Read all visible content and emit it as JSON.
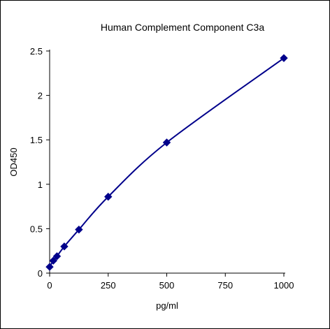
{
  "chart_data": {
    "type": "scatter",
    "title": "Human Complement Component C3a",
    "xlabel": "pg/ml",
    "ylabel": "OD450",
    "xlim": [
      0,
      1000
    ],
    "ylim": [
      0,
      2.5
    ],
    "x_ticks": [
      0,
      250,
      500,
      750,
      1000
    ],
    "y_ticks": [
      0,
      0.5,
      1,
      1.5,
      2,
      2.5
    ],
    "x_tick_labels": [
      "0",
      "250",
      "500",
      "750",
      "1000"
    ],
    "y_tick_labels": [
      "0",
      "0.5",
      "1",
      "1.5",
      "2",
      "2.5"
    ],
    "grid": false,
    "legend": "none",
    "series": [
      {
        "x": [
          0,
          15.6,
          31.25,
          62.5,
          125,
          250,
          500,
          1000
        ],
        "y": [
          0.07,
          0.14,
          0.19,
          0.3,
          0.49,
          0.86,
          1.47,
          2.42
        ],
        "marker": "diamond",
        "fit_line": "smooth",
        "color": "#00008b"
      }
    ]
  }
}
